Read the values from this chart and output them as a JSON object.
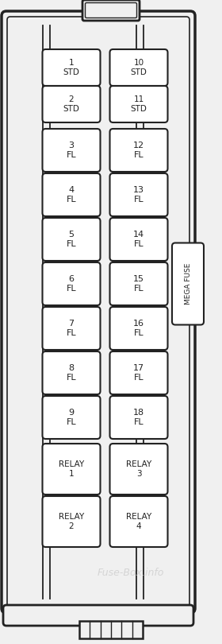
{
  "bg_outer": "#f0f0f0",
  "bg_inner": "#f0f0f0",
  "fuse_bg": "#ffffff",
  "border_color": "#222222",
  "text_color": "#222222",
  "watermark_color": "#cccccc",
  "fuses": [
    {
      "label": "1\nSTD",
      "col": 0,
      "row": 0
    },
    {
      "label": "2\nSTD",
      "col": 0,
      "row": 1
    },
    {
      "label": "3\nFL",
      "col": 0,
      "row": 2
    },
    {
      "label": "4\nFL",
      "col": 0,
      "row": 3
    },
    {
      "label": "5\nFL",
      "col": 0,
      "row": 4
    },
    {
      "label": "6\nFL",
      "col": 0,
      "row": 5
    },
    {
      "label": "7\nFL",
      "col": 0,
      "row": 6
    },
    {
      "label": "8\nFL",
      "col": 0,
      "row": 7
    },
    {
      "label": "9\nFL",
      "col": 0,
      "row": 8
    },
    {
      "label": "10\nSTD",
      "col": 1,
      "row": 0
    },
    {
      "label": "11\nSTD",
      "col": 1,
      "row": 1
    },
    {
      "label": "12\nFL",
      "col": 1,
      "row": 2
    },
    {
      "label": "13\nFL",
      "col": 1,
      "row": 3
    },
    {
      "label": "14\nFL",
      "col": 1,
      "row": 4
    },
    {
      "label": "15\nFL",
      "col": 1,
      "row": 5
    },
    {
      "label": "16\nFL",
      "col": 1,
      "row": 6
    },
    {
      "label": "17\nFL",
      "col": 1,
      "row": 7
    },
    {
      "label": "18\nFL",
      "col": 1,
      "row": 8
    }
  ],
  "relays": [
    {
      "label": "RELAY\n1",
      "col": 0,
      "row": 9
    },
    {
      "label": "RELAY\n2",
      "col": 0,
      "row": 10
    },
    {
      "label": "RELAY\n3",
      "col": 1,
      "row": 9
    },
    {
      "label": "RELAY\n4",
      "col": 1,
      "row": 10
    }
  ],
  "mega_fuse_label": "MEGA FUSE",
  "watermark": "Fuse-Box.info",
  "figsize": [
    2.8,
    8.1
  ],
  "dpi": 100
}
